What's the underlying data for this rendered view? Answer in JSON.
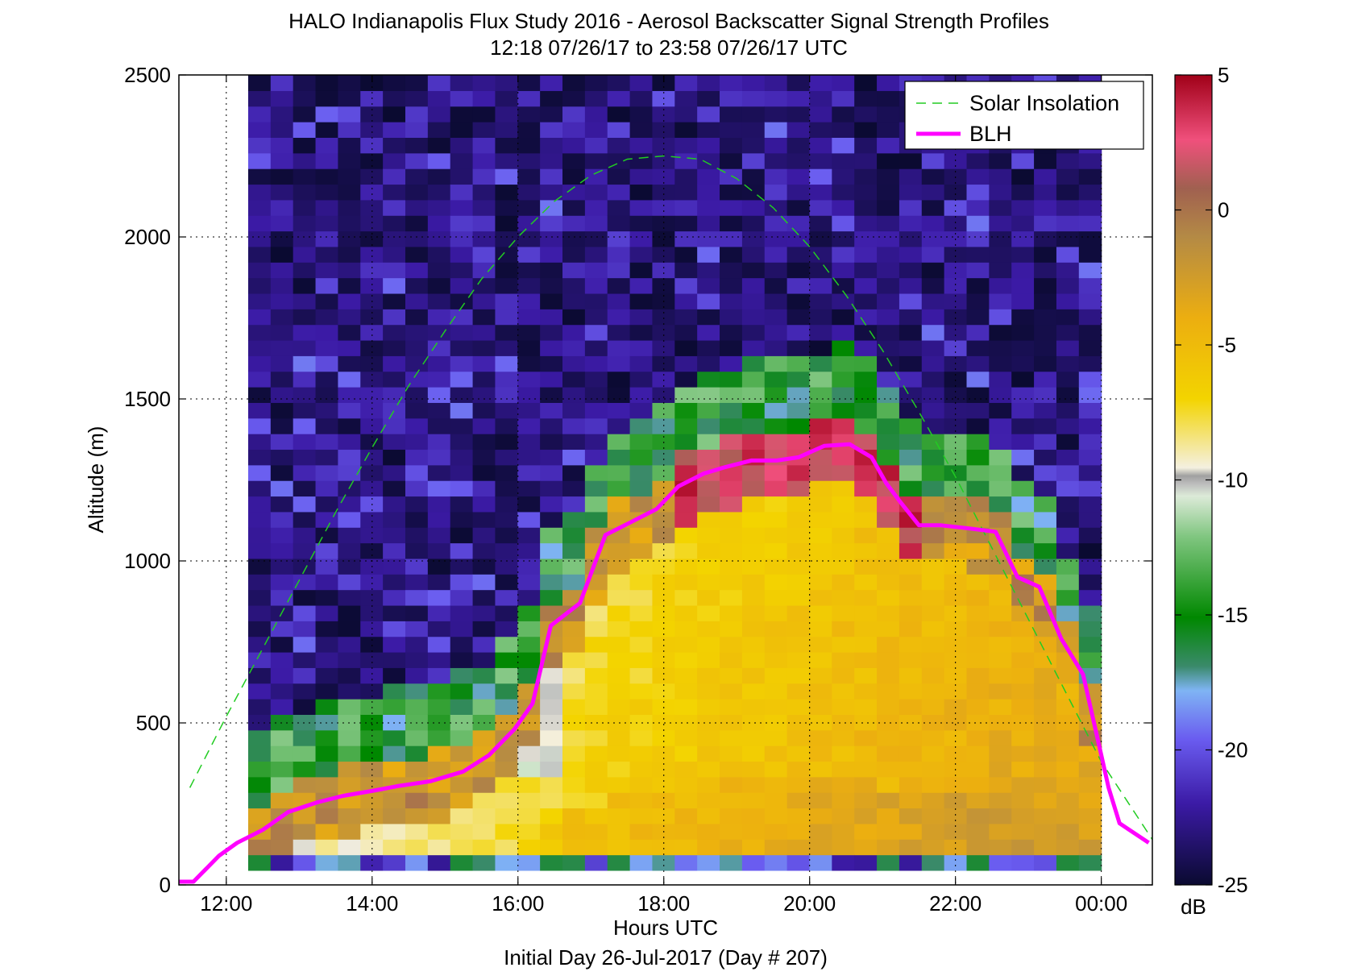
{
  "chart_data": {
    "type": "heatmap",
    "title": "HALO Indianapolis Flux Study 2016 - Aerosol Backscatter Signal Strength Profiles",
    "subtitle": "12:18 07/26/17 to 23:58 07/26/17  UTC",
    "xlabel": "Hours UTC",
    "xlabel2": "Initial Day 26-Jul-2017 (Day # 207)",
    "ylabel": "Altitude (m)",
    "xlim": [
      11.35,
      24.7
    ],
    "ylim": [
      0,
      2500
    ],
    "x_ticks": [
      12,
      14,
      16,
      18,
      20,
      22,
      24
    ],
    "x_tick_labels": [
      "12:00",
      "14:00",
      "16:00",
      "18:00",
      "20:00",
      "22:00",
      "00:00"
    ],
    "y_ticks": [
      0,
      500,
      1000,
      1500,
      2000,
      2500
    ],
    "y_tick_labels": [
      "0",
      "500",
      "1000",
      "1500",
      "2000",
      "2500"
    ],
    "grid": true,
    "legend_position": "top-right",
    "data_extent_hours": [
      12.3,
      24.0
    ],
    "data_extent_altitude_m": [
      45,
      2500
    ],
    "colorbar": {
      "range": [
        -25,
        5
      ],
      "ticks": [
        5,
        0,
        -5,
        -10,
        -15,
        -20,
        -25
      ],
      "tick_labels": [
        "5",
        "0",
        "-5",
        "-10",
        "-15",
        "-20",
        "-25"
      ],
      "unit": "dB"
    },
    "series": [
      {
        "name": "Solar Insolation",
        "style": "dashed",
        "color": "#22cc22",
        "x": [
          11.5,
          12.0,
          12.5,
          13.0,
          13.5,
          14.0,
          14.5,
          15.0,
          15.5,
          16.0,
          16.5,
          17.0,
          17.5,
          18.0,
          18.5,
          19.0,
          19.5,
          20.0,
          20.5,
          21.0,
          21.5,
          22.0,
          22.5,
          23.0,
          23.5,
          24.0,
          24.7
        ],
        "y": [
          300,
          520,
          730,
          940,
          1150,
          1350,
          1540,
          1710,
          1870,
          2000,
          2110,
          2190,
          2240,
          2250,
          2240,
          2180,
          2090,
          1970,
          1820,
          1650,
          1460,
          1260,
          1040,
          820,
          600,
          380,
          140
        ]
      },
      {
        "name": "BLH",
        "style": "solid",
        "color": "#ff00ff",
        "x": [
          11.35,
          11.55,
          11.9,
          12.15,
          12.5,
          12.85,
          13.25,
          13.6,
          14.0,
          14.35,
          14.8,
          15.25,
          15.6,
          15.95,
          16.2,
          16.45,
          16.85,
          17.2,
          17.55,
          17.9,
          18.2,
          18.55,
          18.85,
          19.2,
          19.55,
          19.85,
          20.2,
          20.55,
          20.85,
          21.05,
          21.25,
          21.5,
          21.8,
          22.2,
          22.55,
          22.85,
          23.15,
          23.45,
          23.75,
          24.0,
          24.1,
          24.25,
          24.65
        ],
        "y": [
          10,
          10,
          90,
          130,
          170,
          225,
          255,
          275,
          290,
          305,
          320,
          350,
          400,
          480,
          560,
          800,
          870,
          1080,
          1120,
          1160,
          1230,
          1270,
          1290,
          1310,
          1310,
          1320,
          1355,
          1360,
          1320,
          1240,
          1180,
          1110,
          1110,
          1100,
          1090,
          950,
          920,
          760,
          650,
          400,
          300,
          190,
          130
        ]
      }
    ]
  }
}
